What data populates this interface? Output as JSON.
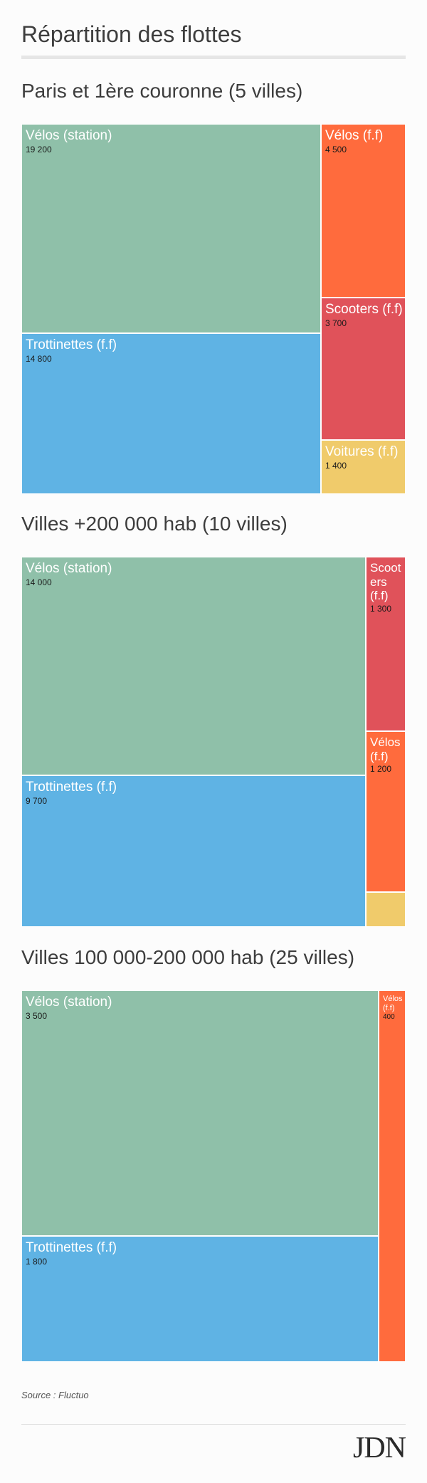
{
  "page": {
    "title": "Répartition des flottes",
    "source": "Source : Fluctuo",
    "logo_text": "JDN"
  },
  "colors": {
    "Vélos (station)": "#8fc0a9",
    "Trottinettes (f.f)": "#5fb3e4",
    "Vélos (f.f)": "#ff6b3d",
    "Scooters (f.f)": "#e0525a",
    "Voitures (f.f)": "#f0cb6b"
  },
  "chart_data": [
    {
      "type": "treemap",
      "title": "Paris et 1ère couronne (5 villes)",
      "series": [
        {
          "name": "Vélos (station)",
          "value": 19200,
          "label": "19 200"
        },
        {
          "name": "Trottinettes (f.f)",
          "value": 14800,
          "label": "14 800"
        },
        {
          "name": "Vélos (f.f)",
          "value": 4500,
          "label": "4 500"
        },
        {
          "name": "Scooters (f.f)",
          "value": 3700,
          "label": "3 700"
        },
        {
          "name": "Voitures (f.f)",
          "value": 1400,
          "label": "1 400"
        }
      ]
    },
    {
      "type": "treemap",
      "title": "Villes +200 000 hab (10 villes)",
      "series": [
        {
          "name": "Vélos (station)",
          "value": 14000,
          "label": "14 000"
        },
        {
          "name": "Trottinettes (f.f)",
          "value": 9700,
          "label": "9 700"
        },
        {
          "name": "Scooters (f.f)",
          "value": 1300,
          "label": "1 300"
        },
        {
          "name": "Vélos (f.f)",
          "value": 1200,
          "label": "1 200"
        },
        {
          "name": "Voitures (f.f)",
          "value": 260,
          "label": "",
          "hidden_label": true
        }
      ]
    },
    {
      "type": "treemap",
      "title": "Villes 100 000-200 000 hab (25 villes)",
      "series": [
        {
          "name": "Vélos (station)",
          "value": 3500,
          "label": "3 500"
        },
        {
          "name": "Trottinettes (f.f)",
          "value": 1800,
          "label": "1 800"
        },
        {
          "name": "Vélos (f.f)",
          "value": 400,
          "label": "400"
        }
      ]
    }
  ]
}
